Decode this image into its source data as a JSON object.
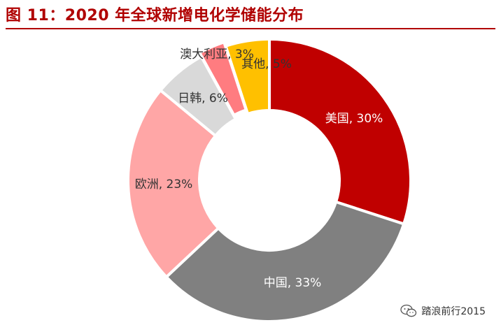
{
  "title": "图 11：2020 年全球新增电化学储能分布",
  "watermark": {
    "text": "踏浪前行2015",
    "icon": "wechat-icon"
  },
  "chart_data": {
    "type": "pie",
    "style": "donut",
    "slices": [
      {
        "label": "美国",
        "value": 30,
        "display": "美国, 30%",
        "color": "#c00000"
      },
      {
        "label": "中国",
        "value": 33,
        "display": "中国, 33%",
        "color": "#808080"
      },
      {
        "label": "欧洲",
        "value": 23,
        "display": "欧洲, 23%",
        "color": "#ffa6a6"
      },
      {
        "label": "日韩",
        "value": 6,
        "display": "日韩, 6%",
        "color": "#d9d9d9"
      },
      {
        "label": "澳大利亚",
        "value": 3,
        "display": "澳大利亚, 3%",
        "color": "#ff7c80"
      },
      {
        "label": "其他",
        "value": 5,
        "display": "其他, 5%",
        "color": "#ffc000"
      }
    ]
  }
}
